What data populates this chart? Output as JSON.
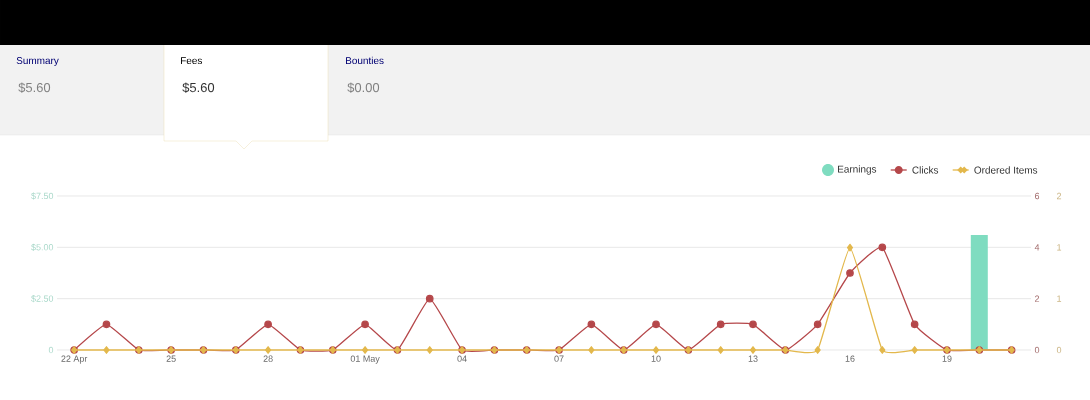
{
  "chart_data": {
    "type": "bar",
    "annotations": [
      "Summary",
      "$5.60",
      "Fees",
      "$5.60",
      "Bounties",
      "$0.00"
    ],
    "categories": [
      "22 Apr",
      null,
      null,
      "25",
      null,
      null,
      "28",
      null,
      null,
      "01 May",
      null,
      null,
      "04",
      null,
      null,
      "07",
      null,
      null,
      "10",
      null,
      null,
      "13",
      null,
      null,
      "16",
      null,
      null,
      "19",
      null,
      null
    ],
    "series": [
      {
        "name": "Earnings",
        "color": "#7fdcc0",
        "values": [
          0,
          0,
          0,
          0,
          0,
          0,
          0,
          0,
          0,
          0,
          0,
          0,
          0,
          0,
          0,
          0,
          0,
          0,
          0,
          0,
          0,
          0,
          0,
          0,
          0,
          0,
          0,
          0,
          5.6,
          0
        ]
      },
      {
        "name": "Clicks",
        "type": "line",
        "axis": "y2",
        "marker": "circle",
        "color": "#b5474a",
        "values": [
          0,
          1,
          0,
          0,
          0,
          0,
          1,
          0,
          0,
          1,
          0,
          2,
          0,
          0,
          0,
          0,
          1,
          0,
          1,
          0,
          1,
          1,
          0,
          1,
          3,
          4,
          1,
          0,
          0,
          0
        ]
      },
      {
        "name": "Ordered Items",
        "type": "line",
        "axis": "y3",
        "marker": "diamond",
        "color": "#e3b84c",
        "values": [
          0,
          0,
          0,
          0,
          0,
          0,
          0,
          0,
          0,
          0,
          0,
          0,
          0,
          0,
          0,
          0,
          0,
          0,
          0,
          0,
          0,
          0,
          0,
          0,
          1.33,
          0,
          0,
          0,
          0,
          0
        ]
      }
    ],
    "ylim": [
      0,
      7.5
    ],
    "yticks": [
      0,
      {
        "value": 2.5,
        "label": "$2.50"
      },
      {
        "value": 5,
        "label": "$5.00"
      },
      {
        "value": 7.5,
        "label": "$7.50"
      }
    ],
    "y2lim": [
      0,
      6
    ],
    "y2ticks": [
      0,
      2,
      4,
      6
    ],
    "y3lim": [
      0,
      2
    ],
    "y3ticks": [
      0,
      {
        "value": 0.667,
        "label": "1"
      },
      {
        "value": 1.333,
        "label": "1"
      },
      2
    ],
    "grid": "y",
    "legend": "top right"
  }
}
